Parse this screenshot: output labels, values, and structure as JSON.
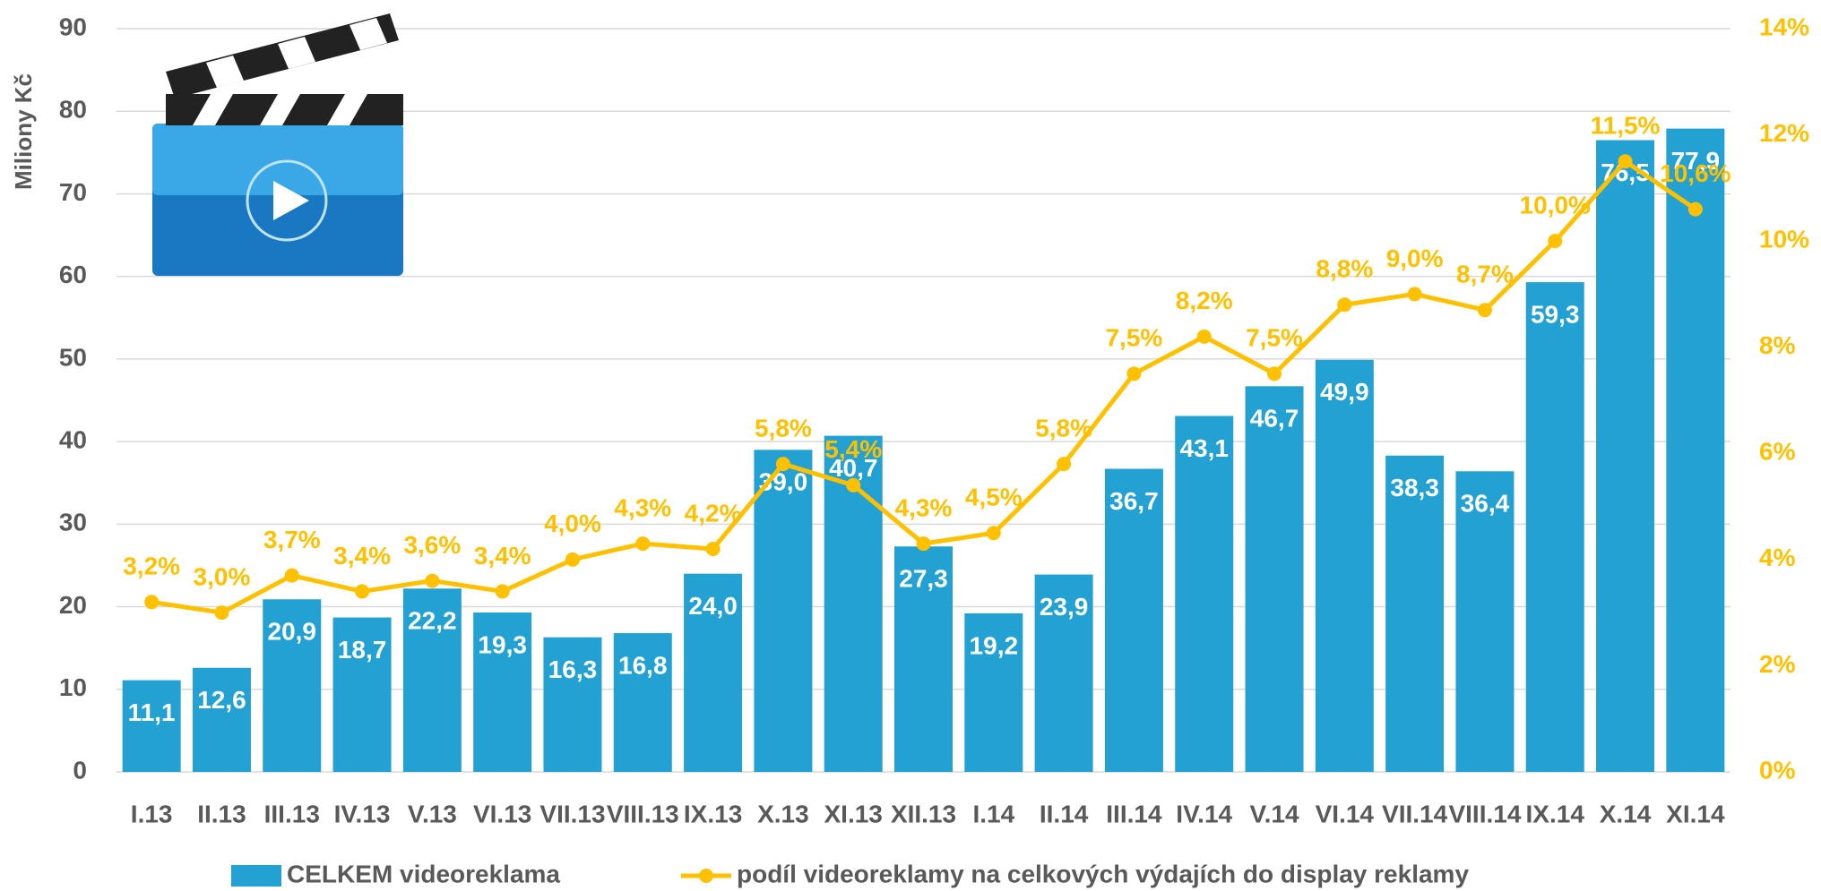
{
  "chart_data": {
    "type": "bar_line",
    "y_axis_label": "Miliony Kč",
    "categories": [
      "I.13",
      "II.13",
      "III.13",
      "IV.13",
      "V.13",
      "VI.13",
      "VII.13",
      "VIII.13",
      "IX.13",
      "X.13",
      "XI.13",
      "XII.13",
      "I.14",
      "II.14",
      "III.14",
      "IV.14",
      "V.14",
      "VI.14",
      "VII.14",
      "VIII.14",
      "IX.14",
      "X.14",
      "XI.14"
    ],
    "series": [
      {
        "name": "CELKEM videoreklama",
        "type": "bar",
        "color": "#23a1d3",
        "values": [
          11.1,
          12.6,
          20.9,
          18.7,
          22.2,
          19.3,
          16.3,
          16.8,
          24.0,
          39.0,
          40.7,
          27.3,
          19.2,
          23.9,
          36.7,
          43.1,
          46.7,
          49.9,
          38.3,
          36.4,
          59.3,
          76.5,
          77.9
        ],
        "value_labels": [
          "11,1",
          "12,6",
          "20,9",
          "18,7",
          "22,2",
          "19,3",
          "16,3",
          "16,8",
          "24,0",
          "39,0",
          "40,7",
          "27,3",
          "19,2",
          "23,9",
          "36,7",
          "43,1",
          "46,7",
          "49,9",
          "38,3",
          "36,4",
          "59,3",
          "76,5",
          "77,9"
        ]
      },
      {
        "name": "podíl videoreklamy na celkových výdajích do display reklamy",
        "type": "line",
        "axis": "y2",
        "color": "#ffc000",
        "values": [
          3.2,
          3.0,
          3.7,
          3.4,
          3.6,
          3.4,
          4.0,
          4.3,
          4.2,
          5.8,
          5.4,
          4.3,
          4.5,
          5.8,
          7.5,
          8.2,
          7.5,
          8.8,
          9.0,
          8.7,
          10.0,
          11.5,
          10.6
        ],
        "value_labels": [
          "3,2%",
          "3,0%",
          "3,7%",
          "3,4%",
          "3,6%",
          "3,4%",
          "4,0%",
          "4,3%",
          "4,2%",
          "5,8%",
          "5,4%",
          "4,3%",
          "4,5%",
          "5,8%",
          "7,5%",
          "8,2%",
          "7,5%",
          "8,8%",
          "9,0%",
          "8,7%",
          "10,0%",
          "11,5%",
          "10,6%"
        ]
      }
    ],
    "ylim": [
      0,
      90
    ],
    "yticks": [
      0,
      10,
      20,
      30,
      40,
      50,
      60,
      70,
      80,
      90
    ],
    "y2lim": [
      0,
      14
    ],
    "y2ticks": [
      {
        "value": 0,
        "label": "0%"
      },
      {
        "value": 2,
        "label": "2%"
      },
      {
        "value": 4,
        "label": "4%"
      },
      {
        "value": 6,
        "label": "6%"
      },
      {
        "value": 8,
        "label": "8%"
      },
      {
        "value": 10,
        "label": "10%"
      },
      {
        "value": 12,
        "label": "12%"
      },
      {
        "value": 14,
        "label": "14%"
      }
    ],
    "grid": true,
    "legend": "bottom"
  }
}
